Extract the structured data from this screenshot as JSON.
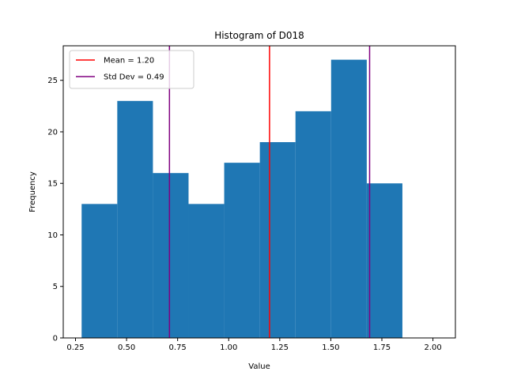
{
  "chart_data": {
    "type": "bar",
    "title": "Histogram of D018",
    "xlabel": "Value",
    "ylabel": "Frequency",
    "xlim": [
      0.19,
      2.11
    ],
    "ylim": [
      0,
      28.35
    ],
    "xticks": [
      "0.25",
      "0.50",
      "0.75",
      "1.00",
      "1.25",
      "1.50",
      "1.75",
      "2.00"
    ],
    "xtick_values": [
      0.25,
      0.5,
      0.75,
      1.0,
      1.25,
      1.5,
      1.75,
      2.0
    ],
    "yticks": [
      "0",
      "5",
      "10",
      "15",
      "20",
      "25"
    ],
    "ytick_values": [
      0,
      5,
      10,
      15,
      20,
      25
    ],
    "bin_edges": [
      0.28,
      0.4545,
      0.629,
      0.8035,
      0.978,
      1.1525,
      1.327,
      1.5015,
      1.676,
      1.8505,
      2.025
    ],
    "counts": [
      13,
      23,
      16,
      13,
      17,
      19,
      22,
      27,
      15,
      0
    ],
    "bar_color": "#1f77b4",
    "grid": false,
    "legend_position": "top-left",
    "lines": [
      {
        "label": "Mean = 1.20",
        "x": 1.2,
        "color": "#ff0000"
      },
      {
        "label": "Std Dev = 0.49",
        "x": 0.71,
        "color": "#800080"
      },
      {
        "label": "",
        "x": 1.69,
        "color": "#800080"
      }
    ]
  }
}
